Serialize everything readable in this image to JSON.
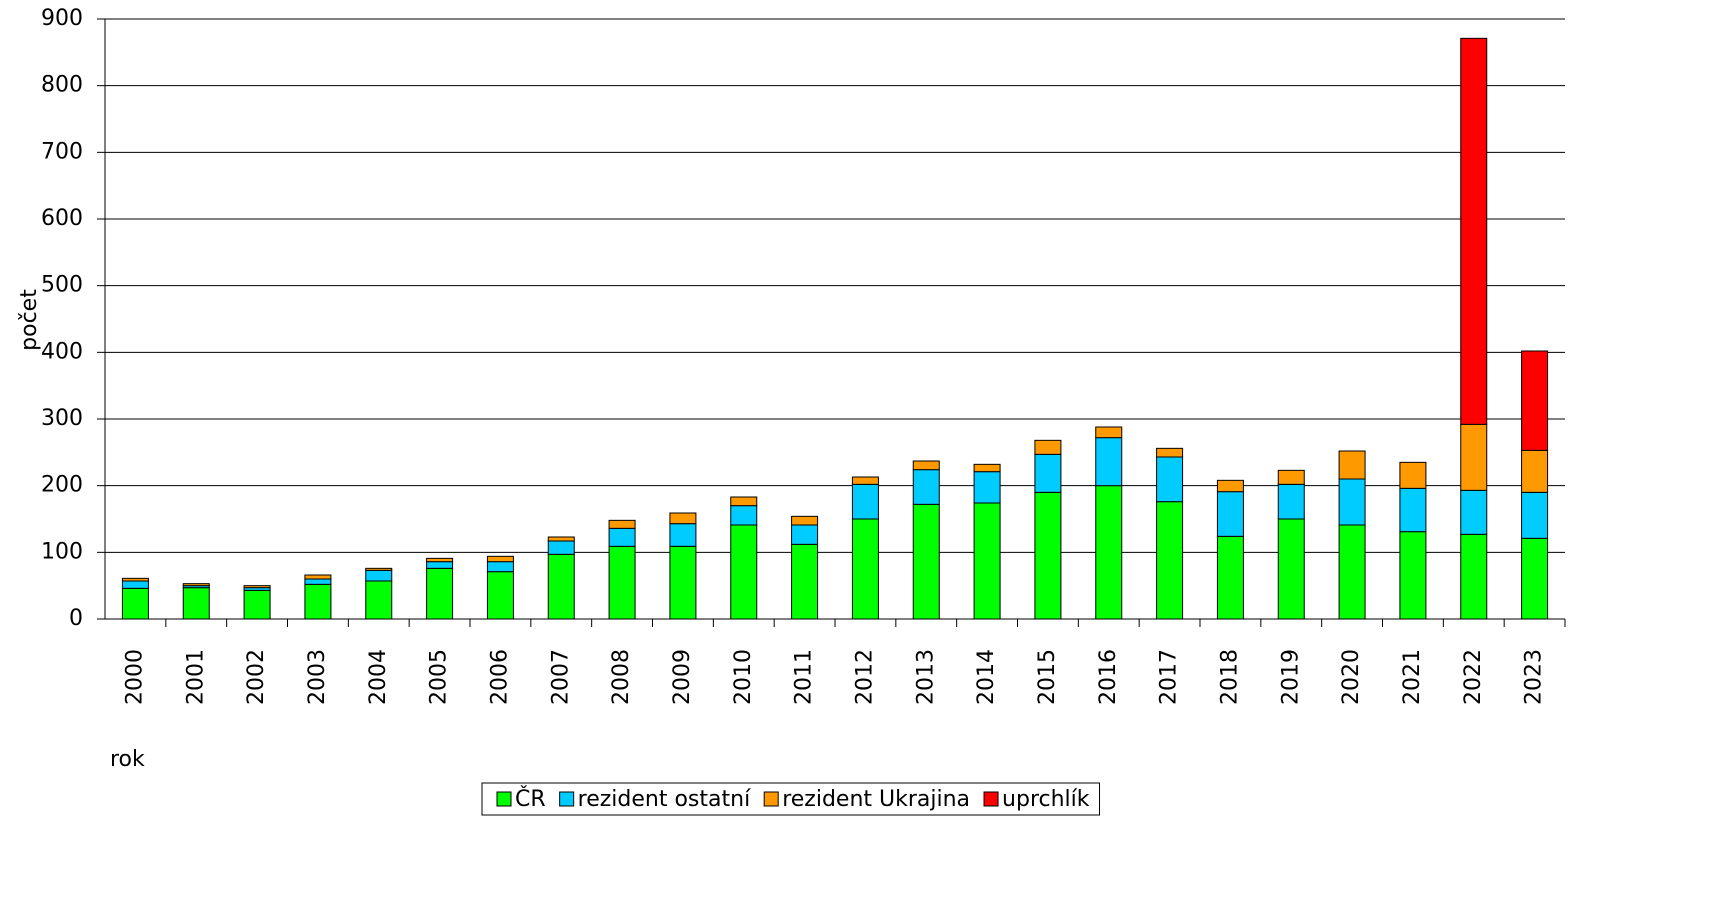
{
  "chart_data": {
    "type": "stacked_bar",
    "categories": [
      "2000",
      "2001",
      "2002",
      "2003",
      "2004",
      "2005",
      "2006",
      "2007",
      "2008",
      "2009",
      "2010",
      "2011",
      "2012",
      "2013",
      "2014",
      "2015",
      "2016",
      "2017",
      "2018",
      "2019",
      "2020",
      "2021",
      "2022",
      "2023"
    ],
    "series": [
      {
        "name": "ČR",
        "color": "#00ff00",
        "values": [
          46,
          47,
          43,
          52,
          57,
          76,
          71,
          97,
          109,
          109,
          141,
          112,
          150,
          172,
          174,
          190,
          200,
          176,
          124,
          150,
          141,
          131,
          127,
          121
        ]
      },
      {
        "name": "rezident ostatní",
        "color": "#00ccff",
        "values": [
          11,
          3,
          4,
          8,
          16,
          10,
          15,
          20,
          27,
          34,
          29,
          29,
          52,
          52,
          47,
          57,
          72,
          67,
          67,
          52,
          69,
          65,
          66,
          69
        ]
      },
      {
        "name": "rezident Ukrajina",
        "color": "#ff9900",
        "values": [
          4,
          3,
          3,
          6,
          3,
          5,
          8,
          6,
          12,
          16,
          13,
          13,
          11,
          13,
          11,
          21,
          16,
          13,
          17,
          21,
          42,
          39,
          99,
          63
        ]
      },
      {
        "name": "uprchlík",
        "color": "#ff0000",
        "values": [
          0,
          0,
          0,
          0,
          0,
          0,
          0,
          0,
          0,
          0,
          0,
          0,
          0,
          0,
          0,
          0,
          0,
          0,
          0,
          0,
          0,
          0,
          579,
          149
        ]
      }
    ],
    "y_label": "počet",
    "x_label": "rok",
    "ylim": [
      0,
      900
    ],
    "yticks": [
      0,
      100,
      200,
      300,
      400,
      500,
      600,
      700,
      800,
      900
    ],
    "grid": true,
    "legend": "bottom"
  }
}
